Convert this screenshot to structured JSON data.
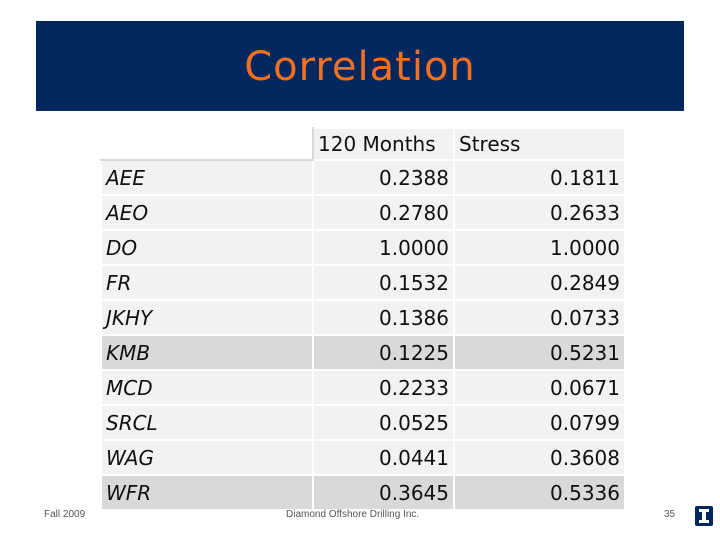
{
  "slide": {
    "title": "Correlation",
    "footer_left": "Fall 2009",
    "footer_center": "Diamond Offshore Drilling Inc.",
    "page_number": "35",
    "title_bar_color": "#00275e",
    "title_text_color": "#f36f21",
    "logo_icon": "illinois-block-i-logo-icon"
  },
  "table": {
    "headers": [
      "",
      "120 Months",
      "Stress"
    ],
    "rows": [
      {
        "ticker": "AEE",
        "months120": "0.2388",
        "stress": "0.1811",
        "highlight": false
      },
      {
        "ticker": "AEO",
        "months120": "0.2780",
        "stress": "0.2633",
        "highlight": false
      },
      {
        "ticker": "DO",
        "months120": "1.0000",
        "stress": "1.0000",
        "highlight": false
      },
      {
        "ticker": "FR",
        "months120": "0.1532",
        "stress": "0.2849",
        "highlight": false
      },
      {
        "ticker": "JKHY",
        "months120": "0.1386",
        "stress": "0.0733",
        "highlight": false
      },
      {
        "ticker": "KMB",
        "months120": "0.1225",
        "stress": "0.5231",
        "highlight": true
      },
      {
        "ticker": "MCD",
        "months120": "0.2233",
        "stress": "0.0671",
        "highlight": false
      },
      {
        "ticker": "SRCL",
        "months120": "0.0525",
        "stress": "0.0799",
        "highlight": false
      },
      {
        "ticker": "WAG",
        "months120": "0.0441",
        "stress": "0.3608",
        "highlight": false
      },
      {
        "ticker": "WFR",
        "months120": "0.3645",
        "stress": "0.5336",
        "highlight": true
      }
    ]
  }
}
